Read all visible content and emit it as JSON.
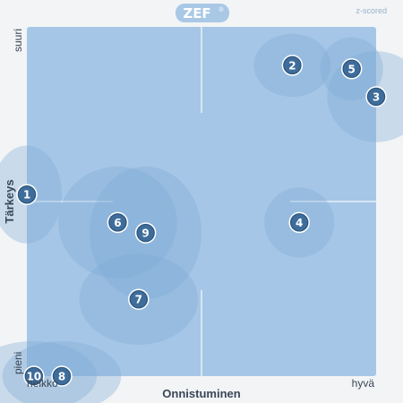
{
  "brand": {
    "name": "ZEF",
    "mark": "®",
    "mode": "z-scored"
  },
  "colors": {
    "plot_bg": "#a5c6e6",
    "ellipse": "#7ea9d4",
    "marker": "#3f6d9b",
    "marker_border": "#2d5479",
    "text": "#3a4656",
    "divider": "#e8f0f8"
  },
  "chart_data": {
    "type": "scatter",
    "title": "",
    "xlabel": "Onnistuminen",
    "ylabel": "Tärkeys",
    "x_low_label": "heikko",
    "x_high_label": "hyvä",
    "y_low_label": "pieni",
    "y_high_label": "suuri",
    "xlim": [
      0,
      1
    ],
    "ylim": [
      0,
      1
    ],
    "grid": false,
    "points": [
      {
        "label": "1",
        "x": 0.0,
        "y": 0.52,
        "sx": 0.1,
        "sy": 0.14
      },
      {
        "label": "2",
        "x": 0.76,
        "y": 0.89,
        "sx": 0.11,
        "sy": 0.09
      },
      {
        "label": "3",
        "x": 1.0,
        "y": 0.8,
        "sx": 0.14,
        "sy": 0.13
      },
      {
        "label": "4",
        "x": 0.78,
        "y": 0.44,
        "sx": 0.1,
        "sy": 0.1
      },
      {
        "label": "5",
        "x": 0.93,
        "y": 0.88,
        "sx": 0.09,
        "sy": 0.09
      },
      {
        "label": "6",
        "x": 0.26,
        "y": 0.44,
        "sx": 0.17,
        "sy": 0.16
      },
      {
        "label": "7",
        "x": 0.32,
        "y": 0.22,
        "sx": 0.17,
        "sy": 0.13
      },
      {
        "label": "8",
        "x": 0.1,
        "y": 0.0,
        "sx": 0.17,
        "sy": 0.1
      },
      {
        "label": "9",
        "x": 0.34,
        "y": 0.41,
        "sx": 0.16,
        "sy": 0.19
      },
      {
        "label": "10",
        "x": 0.02,
        "y": 0.0,
        "sx": 0.18,
        "sy": 0.1
      }
    ]
  }
}
